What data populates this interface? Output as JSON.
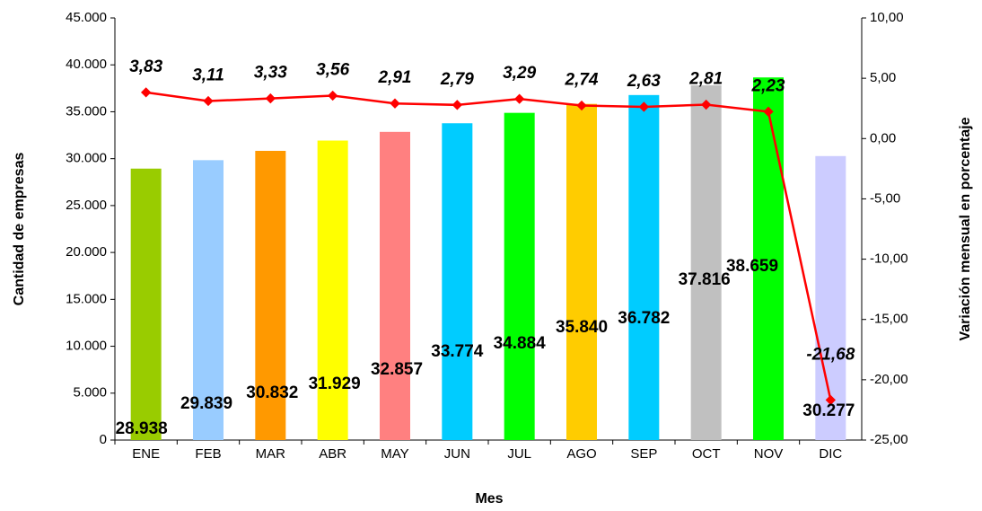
{
  "chart_data": {
    "type": "bar",
    "categories": [
      "ENE",
      "FEB",
      "MAR",
      "ABR",
      "MAY",
      "JUN",
      "JUL",
      "AGO",
      "SEP",
      "OCT",
      "NOV",
      "DIC"
    ],
    "xlabel": "Mes",
    "ylabel": "Cantidad de empresas",
    "y2label": "Variación mensual en porcentaje",
    "series": [
      {
        "type": "bar",
        "colors": [
          "#99cc00",
          "#99ccff",
          "#ff9900",
          "#ffff00",
          "#ff8080",
          "#00ccff",
          "#00ff00",
          "#ffcc00",
          "#00ccff",
          "#c0c0c0",
          "#00ff00",
          "#ccccff"
        ],
        "values": [
          28938,
          29839,
          30832,
          31929,
          32857,
          33774,
          34884,
          35840,
          36782,
          37816,
          38659,
          30277
        ],
        "value_labels": [
          "28.938",
          "29.839",
          "30.832",
          "31.929",
          "32.857",
          "33.774",
          "34.884",
          "35.840",
          "36.782",
          "37.816",
          "38.659",
          "30.277"
        ]
      },
      {
        "type": "line",
        "axis": "y2",
        "color": "#ff0000",
        "values": [
          3.83,
          3.11,
          3.33,
          3.56,
          2.91,
          2.79,
          3.29,
          2.74,
          2.63,
          2.81,
          2.23,
          -21.68
        ],
        "value_labels": [
          "3,83",
          "3,11",
          "3,33",
          "3,56",
          "2,91",
          "2,79",
          "3,29",
          "2,74",
          "2,63",
          "2,81",
          "2,23",
          "-21,68"
        ]
      }
    ],
    "ylim": [
      0,
      45000
    ],
    "yticks": [
      0,
      {
        "value": 5000,
        "label": "5.000"
      },
      {
        "value": 10000,
        "label": "10.000"
      },
      {
        "value": 15000,
        "label": "15.000"
      },
      {
        "value": 20000,
        "label": "20.000"
      },
      {
        "value": 25000,
        "label": "25.000"
      },
      {
        "value": 30000,
        "label": "30.000"
      },
      {
        "value": 35000,
        "label": "35.000"
      },
      {
        "value": 40000,
        "label": "40.000"
      },
      {
        "value": 45000,
        "label": "45.000"
      }
    ],
    "y2lim": [
      -25,
      10
    ],
    "y2ticks": [
      {
        "value": -25,
        "label": "-25,00"
      },
      {
        "value": -20,
        "label": "-20,00"
      },
      {
        "value": -15,
        "label": "-15,00"
      },
      {
        "value": -10,
        "label": "-10,00"
      },
      {
        "value": -5,
        "label": "-5,00"
      },
      {
        "value": 0,
        "label": "0,00"
      },
      {
        "value": 5,
        "label": "5,00"
      },
      {
        "value": 10,
        "label": "10,00"
      }
    ]
  }
}
